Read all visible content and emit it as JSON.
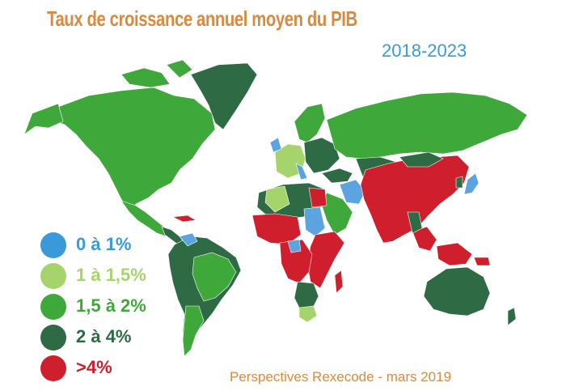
{
  "title": "Taux de croissance annuel moyen du PIB",
  "subtitle": "2018-2023",
  "source": "Perspectives Rexecode - mars 2019",
  "colors": {
    "low": "#5ba4e0",
    "low_mid": "#a6d46c",
    "mid": "#3fa83a",
    "high": "#2e6b44",
    "very_high": "#d01f2c",
    "no_data": "#c8c8c8"
  },
  "legend": [
    {
      "label": "0 à 1%",
      "color": "#3a9ad9",
      "text_color": "#3a9ad9"
    },
    {
      "label": "1 à 1,5%",
      "color": "#a6d46c",
      "text_color": "#a6d46c"
    },
    {
      "label": "1,5 à 2%",
      "color": "#3fa83a",
      "text_color": "#3fa83a"
    },
    {
      "label": "2 à 4%",
      "color": "#2e6b44",
      "text_color": "#2e6b44"
    },
    {
      "label": ">4%",
      "color": "#d01f2c",
      "text_color": "#d01f2c"
    }
  ]
}
